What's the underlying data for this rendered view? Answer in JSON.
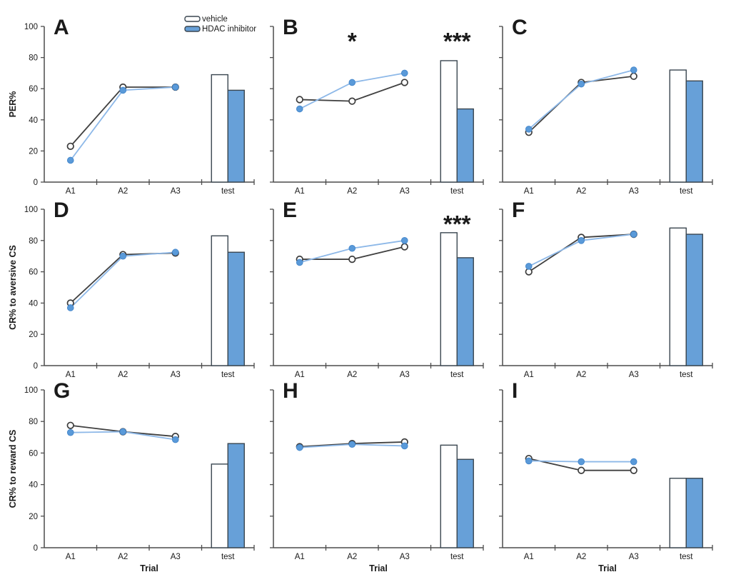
{
  "figure": {
    "background": "#ffffff"
  },
  "chart_data": {
    "type": "line+bar",
    "description": "3x3 multi-panel figure; each panel shows acquisition lines over trials A1-A3 and paired bars at test for two treatment groups",
    "categories": [
      "A1",
      "A2",
      "A3",
      "test"
    ],
    "ylim": [
      0,
      100
    ],
    "yticks": [
      0,
      20,
      40,
      60,
      80,
      100
    ],
    "xlabel": "Trial",
    "legend": {
      "position": "top of panel A",
      "items": [
        {
          "label": "vehicle",
          "fill": "#ffffff"
        },
        {
          "label": "HDAC inhibitor",
          "fill": "#67a0d8"
        }
      ]
    },
    "rows": [
      {
        "ylabel": "PER%"
      },
      {
        "ylabel": "CR% to aversive CS"
      },
      {
        "ylabel": "CR% to reward CS"
      }
    ],
    "colors": {
      "vehicle_line": "#404040",
      "vehicle_marker_fill": "#ffffff",
      "vehicle_marker_stroke": "#3c3c3c",
      "hdac_line": "#8db8e8",
      "hdac_marker_fill": "#5a9ad9",
      "hdac_marker_stroke": "#4688cc",
      "bar_vehicle_fill": "#ffffff",
      "bar_hdac_fill": "#67a0d8",
      "bar_stroke": "#3a4650",
      "axis": "#4c4c4c"
    },
    "panels": [
      {
        "label": "A",
        "row": 0,
        "col": 0,
        "series": [
          {
            "name": "vehicle",
            "line_values": [
              23,
              61,
              61
            ],
            "test_bar": 69
          },
          {
            "name": "HDAC inhibitor",
            "line_values": [
              14,
              59,
              61
            ],
            "test_bar": 59
          }
        ],
        "sig": []
      },
      {
        "label": "B",
        "row": 0,
        "col": 1,
        "series": [
          {
            "name": "vehicle",
            "line_values": [
              53,
              52,
              64
            ],
            "test_bar": 78
          },
          {
            "name": "HDAC inhibitor",
            "line_values": [
              47,
              64,
              70
            ],
            "test_bar": 47
          }
        ],
        "sig": [
          {
            "at": "A2",
            "text": "*"
          },
          {
            "at": "test",
            "text": "***"
          }
        ]
      },
      {
        "label": "C",
        "row": 0,
        "col": 2,
        "series": [
          {
            "name": "vehicle",
            "line_values": [
              32,
              64,
              68
            ],
            "test_bar": 72
          },
          {
            "name": "HDAC inhibitor",
            "line_values": [
              34,
              63,
              72
            ],
            "test_bar": 65
          }
        ],
        "sig": []
      },
      {
        "label": "D",
        "row": 1,
        "col": 0,
        "series": [
          {
            "name": "vehicle",
            "line_values": [
              40,
              71,
              72
            ],
            "test_bar": 83
          },
          {
            "name": "HDAC inhibitor",
            "line_values": [
              37,
              70,
              72.5
            ],
            "test_bar": 72.5
          }
        ],
        "sig": []
      },
      {
        "label": "E",
        "row": 1,
        "col": 1,
        "series": [
          {
            "name": "vehicle",
            "line_values": [
              68,
              68,
              76
            ],
            "test_bar": 85
          },
          {
            "name": "HDAC inhibitor",
            "line_values": [
              66,
              75,
              80
            ],
            "test_bar": 69
          }
        ],
        "sig": [
          {
            "at": "test",
            "text": "***"
          }
        ]
      },
      {
        "label": "F",
        "row": 1,
        "col": 2,
        "series": [
          {
            "name": "vehicle",
            "line_values": [
              60,
              82,
              84
            ],
            "test_bar": 88
          },
          {
            "name": "HDAC inhibitor",
            "line_values": [
              63.5,
              80,
              84
            ],
            "test_bar": 84
          }
        ],
        "sig": []
      },
      {
        "label": "G",
        "row": 2,
        "col": 0,
        "series": [
          {
            "name": "vehicle",
            "line_values": [
              77.5,
              73.5,
              70.5
            ],
            "test_bar": 53
          },
          {
            "name": "HDAC inhibitor",
            "line_values": [
              73,
              73.5,
              68.5
            ],
            "test_bar": 66
          }
        ],
        "sig": []
      },
      {
        "label": "H",
        "row": 2,
        "col": 1,
        "series": [
          {
            "name": "vehicle",
            "line_values": [
              64,
              66,
              67
            ],
            "test_bar": 65
          },
          {
            "name": "HDAC inhibitor",
            "line_values": [
              63.5,
              65.5,
              64.5
            ],
            "test_bar": 56
          }
        ],
        "sig": []
      },
      {
        "label": "I",
        "row": 2,
        "col": 2,
        "series": [
          {
            "name": "vehicle",
            "line_values": [
              56.5,
              49,
              49
            ],
            "test_bar": 44
          },
          {
            "name": "HDAC inhibitor",
            "line_values": [
              55,
              54.5,
              54.5
            ],
            "test_bar": 44
          }
        ],
        "sig": []
      }
    ]
  }
}
